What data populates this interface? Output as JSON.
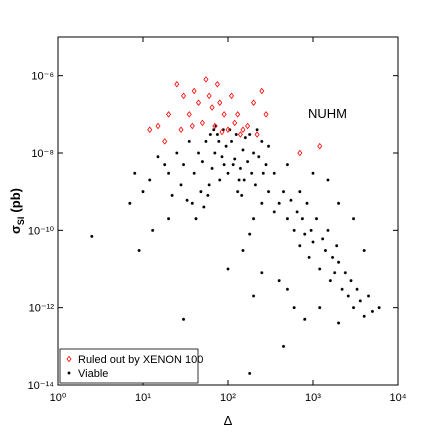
{
  "chart_data": {
    "type": "scatter",
    "xlabel": "Δ",
    "ylabel": {
      "symbol": "σ",
      "subscript": "SI",
      "unit": "(pb)"
    },
    "annotation": "NUHM",
    "xscale": "log",
    "yscale": "log",
    "xlim": [
      1,
      10000
    ],
    "ylim": [
      1e-14,
      1e-05
    ],
    "xticks": [
      {
        "value": 1,
        "label": "10⁰"
      },
      {
        "value": 10,
        "label": "10¹"
      },
      {
        "value": 100,
        "label": "10²"
      },
      {
        "value": 1000,
        "label": "10³"
      },
      {
        "value": 10000,
        "label": "10⁴"
      }
    ],
    "yticks": [
      {
        "value": 1e-14,
        "label": "10⁻¹⁴"
      },
      {
        "value": 1e-12,
        "label": "10⁻¹²"
      },
      {
        "value": 1e-10,
        "label": "10⁻¹⁰"
      },
      {
        "value": 1e-08,
        "label": "10⁻⁸"
      },
      {
        "value": 1e-06,
        "label": "10⁻⁶"
      }
    ],
    "legend": "lower left",
    "series": [
      {
        "name": "Ruled out by XENON 100",
        "color": "#ff0000",
        "marker": "diamond",
        "x": [
          25,
          30,
          35,
          40,
          45,
          50,
          55,
          60,
          65,
          70,
          75,
          80,
          90,
          100,
          110,
          120,
          130,
          150,
          170,
          200,
          220,
          250,
          280,
          12,
          15,
          18,
          20,
          28,
          38,
          85,
          140,
          1200,
          700
        ],
        "y": [
          6e-07,
          3e-07,
          1e-07,
          4e-07,
          2e-07,
          6e-08,
          8e-07,
          3e-07,
          1.5e-07,
          5e-08,
          6e-07,
          2e-07,
          1e-07,
          4e-08,
          3e-07,
          6e-08,
          1e-07,
          4e-08,
          5e-08,
          2e-07,
          3e-08,
          4e-07,
          1e-07,
          4e-08,
          5e-08,
          2e-08,
          1e-07,
          4e-08,
          5e-08,
          3.5e-08,
          3e-08,
          1.5e-08,
          1e-08
        ]
      },
      {
        "name": "Viable",
        "color": "#000000",
        "marker": "star",
        "x": [
          25,
          30,
          35,
          40,
          45,
          50,
          55,
          60,
          65,
          70,
          75,
          80,
          85,
          90,
          95,
          100,
          110,
          120,
          130,
          140,
          150,
          160,
          170,
          180,
          200,
          220,
          250,
          280,
          300,
          20,
          22,
          28,
          33,
          38,
          42,
          48,
          52,
          58,
          62,
          68,
          72,
          78,
          88,
          105,
          115,
          125,
          135,
          145,
          155,
          190,
          210,
          230,
          260,
          15,
          12,
          18,
          10,
          8,
          7,
          13,
          9,
          300,
          350,
          400,
          450,
          500,
          550,
          600,
          650,
          700,
          750,
          800,
          850,
          900,
          950,
          1000,
          1100,
          1200,
          1300,
          1400,
          1500,
          1600,
          1700,
          1800,
          1900,
          2000,
          2200,
          2400,
          2600,
          2800,
          3000,
          3300,
          3600,
          4000,
          4500,
          5000,
          6000,
          400,
          500,
          200,
          250,
          150,
          180,
          200,
          250,
          350,
          500,
          700,
          1000,
          1500,
          2000,
          3000,
          4000,
          800,
          1200,
          2000,
          600,
          2.5,
          30,
          180,
          450,
          100,
          20
        ],
        "y": [
          1e-08,
          5e-09,
          2e-08,
          3e-09,
          1e-08,
          6e-09,
          2e-08,
          1.5e-09,
          4e-09,
          1e-08,
          3e-08,
          2e-09,
          8e-09,
          5e-09,
          1.5e-08,
          3e-09,
          2e-08,
          7e-09,
          1e-09,
          4e-09,
          1.2e-08,
          2.5e-08,
          6e-09,
          3e-08,
          1e-08,
          4e-08,
          2e-08,
          5e-09,
          1.5e-08,
          3e-09,
          8e-10,
          1.5e-09,
          6e-10,
          5e-10,
          2e-10,
          1e-09,
          4e-10,
          8e-10,
          3e-08,
          4e-08,
          5e-08,
          2e-08,
          4e-08,
          4e-08,
          5e-09,
          3e-08,
          2e-09,
          8e-10,
          2e-09,
          3e-09,
          1.5e-09,
          8e-09,
          3e-09,
          8e-09,
          2e-09,
          5e-09,
          1e-09,
          3e-09,
          5e-10,
          1e-10,
          3e-11,
          1e-09,
          3e-10,
          5e-10,
          1e-09,
          2e-10,
          6e-10,
          1e-10,
          3e-10,
          4e-11,
          2e-10,
          8e-11,
          5e-10,
          2e-11,
          1e-10,
          5e-11,
          2e-10,
          1e-11,
          6e-11,
          3e-11,
          1e-10,
          5e-12,
          2e-11,
          8e-12,
          4e-11,
          1.5e-11,
          3e-12,
          8e-12,
          2e-12,
          5e-12,
          1e-12,
          3e-12,
          1.5e-12,
          6e-13,
          2e-12,
          8e-13,
          1e-12,
          5e-12,
          3e-12,
          2e-12,
          8e-12,
          3e-11,
          8e-11,
          2e-10,
          5e-10,
          3e-09,
          5e-09,
          1e-09,
          3e-09,
          2e-09,
          5e-10,
          2e-10,
          3e-11,
          5e-13,
          1e-12,
          4e-13,
          1e-12,
          7e-11,
          5e-13,
          2e-14,
          1e-13,
          1e-11,
          2e-10
        ]
      }
    ]
  }
}
